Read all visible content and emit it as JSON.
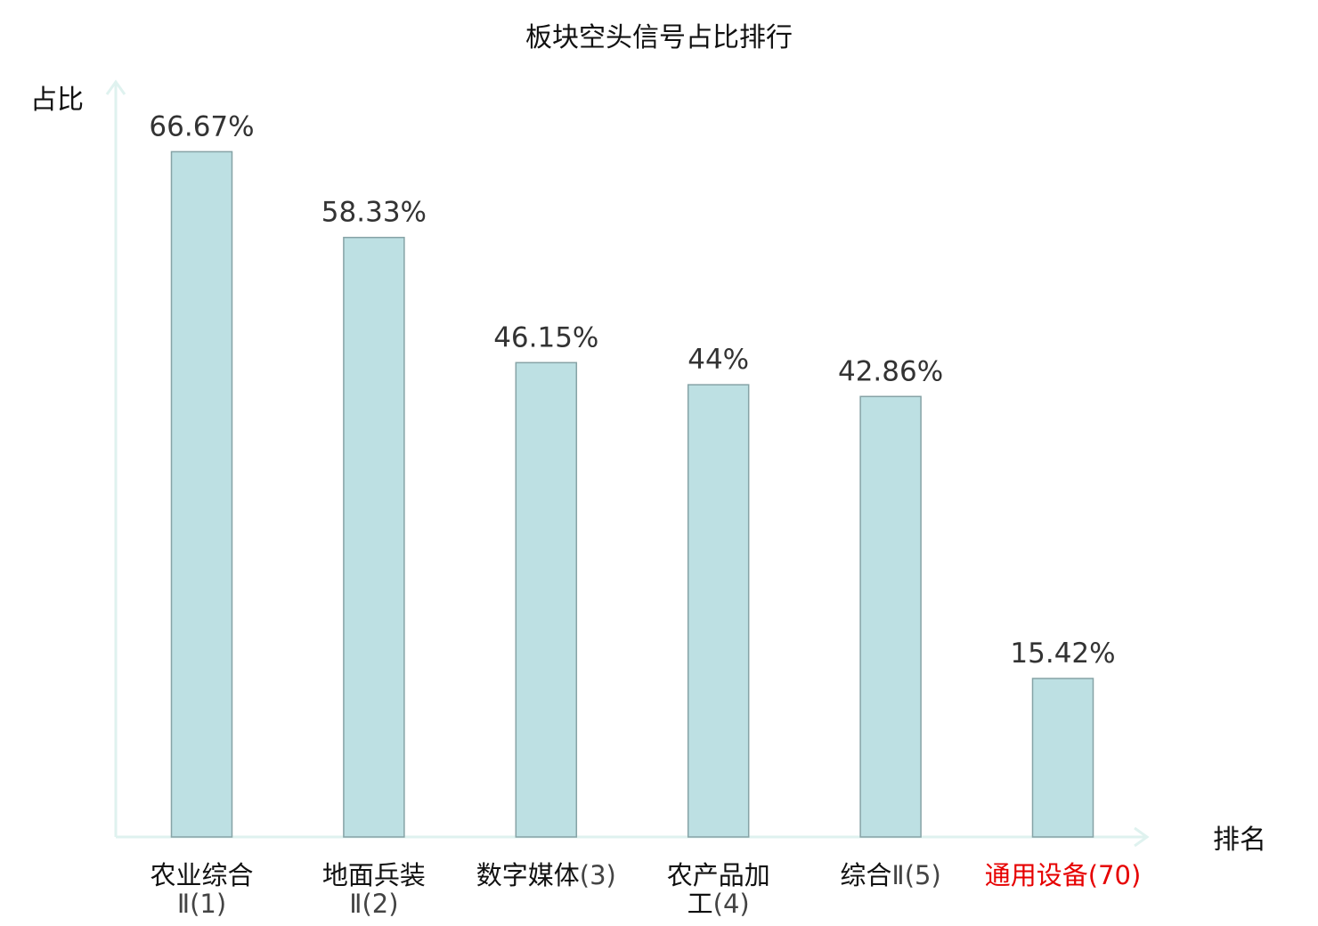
{
  "chart_data": {
    "type": "bar",
    "title": "板块空头信号占比排行",
    "ylabel": "占比",
    "xlabel": "排名",
    "ylim": [
      0,
      70
    ],
    "grid": false,
    "categories": [
      {
        "lines": [
          "农业综合",
          "Ⅱ(1)"
        ],
        "highlight": false
      },
      {
        "lines": [
          "地面兵装",
          "Ⅱ(2)"
        ],
        "highlight": false
      },
      {
        "lines": [
          "数字媒体(3)"
        ],
        "highlight": false
      },
      {
        "lines": [
          "农产品加",
          "工(4)"
        ],
        "highlight": false
      },
      {
        "lines": [
          "综合Ⅱ(5)"
        ],
        "highlight": false
      },
      {
        "lines": [
          "通用设备(70)"
        ],
        "highlight": true
      }
    ],
    "values": [
      66.67,
      58.33,
      46.15,
      44,
      42.86,
      15.42
    ],
    "value_labels": [
      "66.67%",
      "58.33%",
      "46.15%",
      "44%",
      "42.86%",
      "15.42%"
    ]
  },
  "colors": {
    "bar_fill": "#bde0e3",
    "bar_stroke": "#86a3a6",
    "axis": "#dff2ef",
    "highlight": "#e60000"
  }
}
